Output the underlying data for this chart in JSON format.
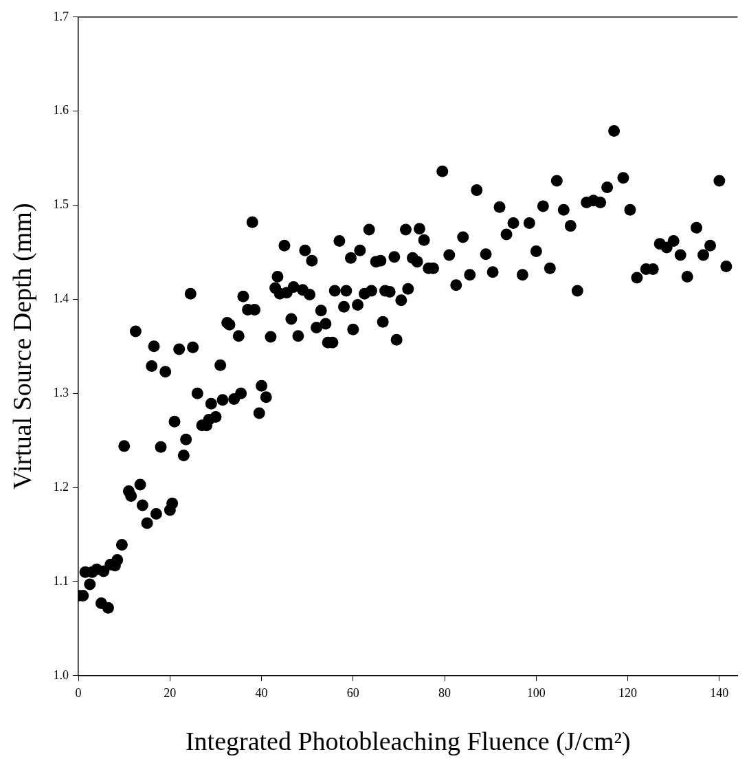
{
  "chart_data": {
    "type": "scatter",
    "xlabel": "Integrated Photobleaching Fluence (J/cm²)",
    "ylabel": "Virtual Source Depth (mm)",
    "xlim": [
      0,
      144
    ],
    "xticks": [
      0,
      20,
      40,
      60,
      80,
      100,
      120,
      140
    ],
    "ylim": [
      1,
      1.7
    ],
    "yticks": [
      {
        "value": 1,
        "label": "1.0"
      },
      {
        "value": 1.1,
        "label": "1.1"
      },
      {
        "value": 1.2,
        "label": "1.2"
      },
      {
        "value": 1.3,
        "label": "1.3"
      },
      {
        "value": 1.4,
        "label": "1.4"
      },
      {
        "value": 1.5,
        "label": "1.5"
      },
      {
        "value": 1.6,
        "label": "1.6"
      },
      {
        "value": 1.7,
        "label": "1.7"
      }
    ],
    "grid": false,
    "legend": false,
    "marker": "circle",
    "series": [
      {
        "color": "#000000",
        "x": [
          0,
          1,
          1.5,
          2.5,
          3,
          4,
          5,
          5.5,
          6.5,
          7,
          8,
          8.5,
          9.5,
          10,
          11,
          11.5,
          12.5,
          13.5,
          14,
          15,
          16,
          16.5,
          17,
          18,
          19,
          20,
          20.5,
          21,
          22,
          23,
          23.5,
          24.5,
          25,
          26,
          27,
          28,
          28.5,
          29,
          30,
          31,
          31.5,
          32.5,
          33,
          34,
          35,
          35.5,
          36,
          37,
          38,
          38.5,
          39.5,
          40,
          41,
          42,
          43,
          43.5,
          44,
          45,
          45.5,
          46.5,
          47,
          48,
          49,
          49.5,
          50.5,
          51,
          52,
          53,
          54,
          54.5,
          55.5,
          56,
          57,
          58,
          58.5,
          59.5,
          60,
          61,
          61.5,
          62.5,
          63.5,
          64,
          65,
          66,
          66.5,
          67,
          68,
          69,
          69.5,
          70.5,
          71.5,
          72,
          73,
          74,
          74.5,
          75.5,
          76.5,
          77.5,
          79.5,
          81,
          82.5,
          84,
          85.5,
          87,
          89,
          90.5,
          92,
          93.5,
          95,
          97,
          98.5,
          100,
          101.5,
          103,
          104.5,
          106,
          107.5,
          109,
          111,
          112.5,
          114,
          115.5,
          117,
          119,
          120.5,
          122,
          124,
          125.5,
          127,
          128.5,
          130,
          131.5,
          133,
          135,
          136.5,
          138,
          140,
          141.5
        ],
        "values": [
          1.085,
          1.085,
          1.11,
          1.097,
          1.11,
          1.113,
          1.077,
          1.111,
          1.072,
          1.118,
          1.117,
          1.123,
          1.139,
          1.244,
          1.196,
          1.191,
          1.366,
          1.203,
          1.181,
          1.162,
          1.329,
          1.35,
          1.172,
          1.243,
          1.323,
          1.176,
          1.183,
          1.27,
          1.347,
          1.234,
          1.251,
          1.406,
          1.349,
          1.3,
          1.266,
          1.266,
          1.272,
          1.289,
          1.275,
          1.33,
          1.293,
          1.375,
          1.373,
          1.294,
          1.361,
          1.3,
          1.403,
          1.389,
          1.482,
          1.389,
          1.279,
          1.308,
          1.296,
          1.36,
          1.412,
          1.424,
          1.406,
          1.457,
          1.407,
          1.379,
          1.413,
          1.361,
          1.41,
          1.452,
          1.405,
          1.441,
          1.37,
          1.388,
          1.374,
          1.354,
          1.354,
          1.409,
          1.462,
          1.392,
          1.409,
          1.444,
          1.368,
          1.394,
          1.452,
          1.406,
          1.474,
          1.409,
          1.44,
          1.441,
          1.376,
          1.409,
          1.408,
          1.445,
          1.357,
          1.399,
          1.474,
          1.411,
          1.444,
          1.44,
          1.475,
          1.463,
          1.433,
          1.433,
          1.536,
          1.447,
          1.415,
          1.466,
          1.426,
          1.516,
          1.448,
          1.429,
          1.498,
          1.469,
          1.481,
          1.426,
          1.481,
          1.451,
          1.499,
          1.433,
          1.526,
          1.495,
          1.478,
          1.409,
          1.503,
          1.505,
          1.503,
          1.519,
          1.579,
          1.529,
          1.495,
          1.423,
          1.432,
          1.432,
          1.459,
          1.455,
          1.462,
          1.447,
          1.424,
          1.476,
          1.447,
          1.457,
          1.526,
          1.435
        ]
      }
    ]
  }
}
